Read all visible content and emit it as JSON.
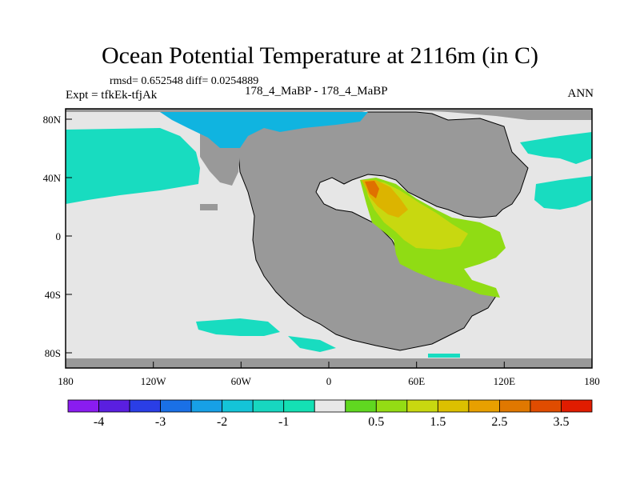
{
  "header": {
    "title": "Ocean Potential Temperature at 2116m (in C)",
    "stats": "rmsd= 0.652548 diff= 0.0254889",
    "experiment": "Expt = tfkEk-tfjAk",
    "case": "178_4_MaBP - 178_4_MaBP",
    "season": "ANN"
  },
  "map": {
    "lon_ticks": [
      "180",
      "120W",
      "60W",
      "0",
      "60E",
      "120E",
      "180"
    ],
    "lat_ticks": [
      "80N",
      "40N",
      "0",
      "40S",
      "80S"
    ],
    "land_color": "#999999",
    "background_color": "#e6e6e6"
  },
  "colorbar": {
    "colors": [
      "#8a1cf0",
      "#5a1fe0",
      "#2a3ee6",
      "#1a70e6",
      "#17a0e6",
      "#14c4d8",
      "#17d7c0",
      "#14e0b4",
      "#e8e8e8",
      "#60d820",
      "#94dc14",
      "#c8d810",
      "#dcc000",
      "#e8a000",
      "#e07800",
      "#e04c00",
      "#e01c00"
    ],
    "labels": [
      "-4",
      "-3",
      "-2",
      "-1",
      "0.5",
      "1.5",
      "2.5",
      "3.5"
    ]
  }
}
